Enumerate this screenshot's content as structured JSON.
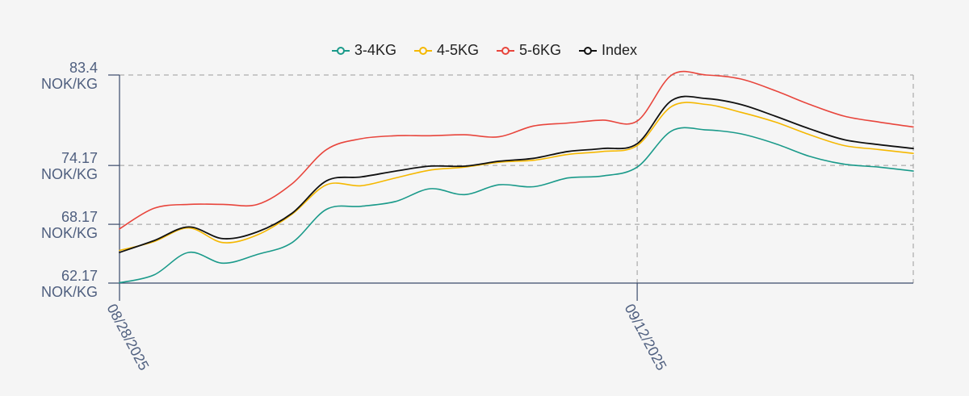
{
  "chart_data": {
    "type": "line",
    "x": [
      "08/28/2025",
      "08/29/2025",
      "08/30/2025",
      "08/31/2025",
      "09/01/2025",
      "09/02/2025",
      "09/03/2025",
      "09/04/2025",
      "09/05/2025",
      "09/06/2025",
      "09/07/2025",
      "09/08/2025",
      "09/09/2025",
      "09/10/2025",
      "09/11/2025",
      "09/12/2025",
      "09/13/2025",
      "09/14/2025",
      "09/15/2025",
      "09/16/2025",
      "09/17/2025",
      "09/18/2025",
      "09/19/2025",
      "09/20/2025"
    ],
    "x_ticks": [
      {
        "value": "08/28/2025",
        "label": "08/28/2025"
      },
      {
        "value": "09/12/2025",
        "label": "09/12/2025"
      }
    ],
    "y_ticks": [
      {
        "value": 62.17,
        "label_top": "62.17",
        "label_bottom": "NOK/KG"
      },
      {
        "value": 68.17,
        "label_top": "68.17",
        "label_bottom": "NOK/KG"
      },
      {
        "value": 74.17,
        "label_top": "74.17",
        "label_bottom": "NOK/KG"
      },
      {
        "value": 83.4,
        "label_top": "83.4",
        "label_bottom": "NOK/KG"
      }
    ],
    "ylim": [
      62.17,
      83.4
    ],
    "grid": true,
    "legend_position": "top-center",
    "series": [
      {
        "name": "3-4KG",
        "color": "#1a9a8a",
        "values": [
          62.2,
          63.0,
          65.3,
          64.2,
          65.1,
          66.3,
          69.7,
          70.0,
          70.5,
          71.8,
          71.2,
          72.2,
          72.0,
          72.9,
          73.1,
          74.0,
          77.7,
          77.8,
          77.4,
          76.4,
          75.1,
          74.3,
          74.0,
          73.6
        ]
      },
      {
        "name": "4-5KG",
        "color": "#f5b800",
        "values": [
          65.5,
          66.4,
          67.8,
          66.3,
          67.1,
          69.2,
          72.2,
          72.1,
          72.9,
          73.7,
          74.0,
          74.5,
          74.7,
          75.3,
          75.6,
          76.2,
          80.2,
          80.4,
          79.6,
          78.6,
          77.3,
          76.2,
          75.8,
          75.4
        ]
      },
      {
        "name": "5-6KG",
        "color": "#e8453c",
        "values": [
          67.7,
          69.8,
          70.2,
          70.2,
          70.2,
          72.3,
          75.8,
          76.9,
          77.2,
          77.2,
          77.3,
          77.1,
          78.2,
          78.5,
          78.8,
          78.7,
          83.4,
          83.4,
          83.0,
          81.8,
          80.4,
          79.2,
          78.6,
          78.1
        ]
      },
      {
        "name": "Index",
        "color": "#111111",
        "values": [
          65.3,
          66.5,
          67.9,
          66.7,
          67.4,
          69.3,
          72.6,
          73.0,
          73.6,
          74.1,
          74.1,
          74.6,
          74.9,
          75.6,
          75.9,
          76.4,
          80.8,
          81.0,
          80.4,
          79.2,
          77.9,
          76.8,
          76.3,
          75.9
        ]
      }
    ]
  }
}
